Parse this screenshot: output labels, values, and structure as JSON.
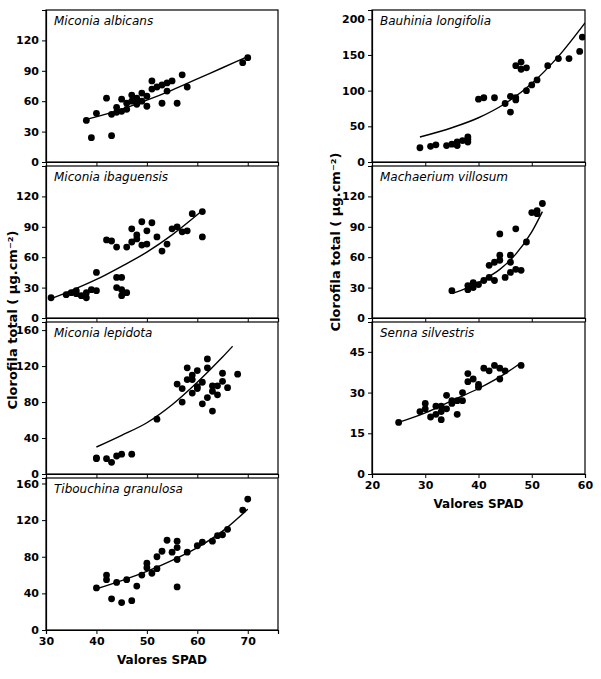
{
  "chart_data": [
    {
      "type": "scatter",
      "title": "Miconia albicans",
      "xlim": [
        30,
        76
      ],
      "ylim": [
        0,
        150
      ],
      "xticks": [
        30,
        40,
        50,
        60,
        70
      ],
      "yticks": [
        0,
        30,
        60,
        90,
        120
      ],
      "tick_labels": "y",
      "series": [
        {
          "type": "scatter",
          "marker": "circle",
          "color": "#000000",
          "x": [
            38,
            39,
            40,
            42,
            43,
            43,
            44,
            44,
            45,
            45,
            46,
            46,
            47,
            47,
            48,
            48,
            49,
            49,
            50,
            50,
            51,
            51,
            52,
            53,
            53,
            54,
            54,
            55,
            56,
            57,
            58,
            69,
            70
          ],
          "values": [
            41,
            24,
            48,
            63,
            26,
            47,
            49,
            54,
            50,
            62,
            58,
            52,
            60,
            66,
            57,
            63,
            68,
            60,
            55,
            65,
            80,
            72,
            74,
            58,
            76,
            70,
            78,
            80,
            58,
            86,
            74,
            98,
            103
          ]
        },
        {
          "type": "line",
          "line_style": "solid",
          "color": "#000000",
          "x": [
            38,
            45,
            50,
            55,
            60,
            65,
            70
          ],
          "values": [
            42,
            52,
            61,
            71,
            82,
            93,
            104
          ]
        }
      ]
    },
    {
      "type": "scatter",
      "title": "Miconia ibaguensis",
      "xlim": [
        30,
        76
      ],
      "ylim": [
        0,
        150
      ],
      "xticks": [
        30,
        40,
        50,
        60,
        70
      ],
      "yticks": [
        0,
        30,
        60,
        90,
        120
      ],
      "tick_labels": "y",
      "series": [
        {
          "type": "scatter",
          "marker": "circle",
          "color": "#000000",
          "x": [
            31,
            34,
            35,
            36,
            36,
            37,
            38,
            38,
            39,
            40,
            40,
            42,
            43,
            44,
            44,
            44,
            45,
            45,
            45,
            46,
            46,
            47,
            47,
            48,
            48,
            49,
            49,
            50,
            50,
            51,
            52,
            53,
            54,
            55,
            56,
            57,
            58,
            59,
            61,
            61
          ],
          "values": [
            20,
            23,
            25,
            24,
            27,
            22,
            20,
            25,
            28,
            45,
            27,
            77,
            76,
            70,
            40,
            30,
            28,
            22,
            40,
            25,
            70,
            75,
            88,
            82,
            78,
            72,
            95,
            73,
            86,
            94,
            80,
            66,
            73,
            88,
            90,
            85,
            86,
            103,
            80,
            105
          ]
        },
        {
          "type": "line",
          "line_style": "solid",
          "color": "#000000",
          "x": [
            31,
            35,
            40,
            45,
            50,
            55,
            61
          ],
          "values": [
            19,
            27,
            38,
            51,
            65,
            82,
            106
          ]
        }
      ]
    },
    {
      "type": "scatter",
      "title": "Miconia lepidota",
      "xlim": [
        30,
        76
      ],
      "ylim": [
        0,
        169
      ],
      "xticks": [
        30,
        40,
        50,
        60,
        70
      ],
      "yticks": [
        0,
        40,
        80,
        120,
        160
      ],
      "tick_labels": "y",
      "y_label": "Clorofila total ( µg.cm⁻²)",
      "series": [
        {
          "type": "scatter",
          "marker": "circle",
          "color": "#000000",
          "x": [
            40,
            40,
            42,
            43,
            44,
            45,
            47,
            52,
            56,
            57,
            57,
            58,
            58,
            59,
            59,
            59,
            60,
            60,
            60,
            61,
            61,
            62,
            62,
            62,
            63,
            63,
            63,
            64,
            64,
            65,
            65,
            66,
            68
          ],
          "values": [
            18,
            17,
            17,
            13,
            20,
            22,
            22,
            61,
            100,
            95,
            80,
            105,
            118,
            110,
            105,
            90,
            115,
            97,
            95,
            78,
            102,
            85,
            128,
            118,
            98,
            70,
            92,
            98,
            88,
            103,
            112,
            96,
            111
          ]
        },
        {
          "type": "line",
          "line_style": "solid",
          "color": "#000000",
          "x": [
            40,
            45,
            50,
            55,
            60,
            65,
            67
          ],
          "values": [
            30,
            43,
            57,
            77,
            102,
            130,
            142
          ]
        }
      ]
    },
    {
      "type": "scatter",
      "title": "Tibouchina granulosa",
      "xlim": [
        30,
        76
      ],
      "ylim": [
        0,
        166
      ],
      "xticks": [
        30,
        40,
        50,
        60,
        70
      ],
      "yticks": [
        0,
        40,
        80,
        120,
        160
      ],
      "x_label": "Valores SPAD",
      "series": [
        {
          "type": "scatter",
          "marker": "circle",
          "color": "#000000",
          "x": [
            40,
            42,
            42,
            43,
            44,
            45,
            46,
            47,
            48,
            49,
            50,
            50,
            51,
            52,
            52,
            53,
            54,
            55,
            56,
            56,
            56,
            56,
            58,
            60,
            61,
            63,
            64,
            65,
            66,
            69,
            70
          ],
          "values": [
            46,
            55,
            60,
            34,
            52,
            30,
            55,
            32,
            48,
            60,
            73,
            68,
            62,
            67,
            80,
            86,
            98,
            85,
            90,
            77,
            97,
            47,
            85,
            92,
            96,
            97,
            103,
            104,
            110,
            131,
            143
          ]
        },
        {
          "type": "line",
          "line_style": "solid",
          "color": "#000000",
          "x": [
            40,
            45,
            50,
            55,
            60,
            65,
            70
          ],
          "values": [
            45,
            54,
            64,
            76,
            90,
            108,
            132
          ]
        }
      ]
    },
    {
      "type": "scatter",
      "title": "Bauhinia longifolia",
      "xlim": [
        20,
        60
      ],
      "ylim": [
        0,
        213
      ],
      "xticks": [
        20,
        30,
        40,
        50,
        60
      ],
      "yticks": [
        0,
        50,
        100,
        150,
        200
      ],
      "tick_labels": "y",
      "series": [
        {
          "type": "scatter",
          "marker": "circle",
          "color": "#000000",
          "x": [
            29,
            31,
            32,
            34,
            35,
            36,
            36,
            37,
            38,
            38,
            38,
            40,
            41,
            43,
            45,
            46,
            46,
            47,
            47,
            47,
            48,
            48,
            49,
            49,
            50,
            51,
            53,
            55,
            57,
            59,
            59.5
          ],
          "values": [
            20,
            22,
            24,
            23,
            25,
            28,
            23,
            30,
            35,
            28,
            32,
            88,
            90,
            90,
            82,
            70,
            92,
            90,
            87,
            135,
            130,
            140,
            132,
            100,
            108,
            115,
            135,
            145,
            145,
            155,
            175
          ]
        },
        {
          "type": "line",
          "line_style": "solid",
          "color": "#000000",
          "x": [
            29,
            35,
            40,
            45,
            50,
            55,
            60
          ],
          "values": [
            35,
            48,
            62,
            82,
            110,
            148,
            195
          ]
        }
      ]
    },
    {
      "type": "scatter",
      "title": "Machaerium villosum",
      "xlim": [
        20,
        60
      ],
      "ylim": [
        0,
        150
      ],
      "xticks": [
        20,
        30,
        40,
        50,
        60
      ],
      "yticks": [
        0,
        30,
        60,
        90,
        120
      ],
      "tick_labels": "y",
      "y_label": "Clorofila total ( µg.cm⁻²)",
      "series": [
        {
          "type": "scatter",
          "marker": "circle",
          "color": "#000000",
          "x": [
            35,
            38,
            38,
            39,
            39,
            40,
            41,
            42,
            42,
            43,
            43,
            44,
            44,
            44,
            45,
            46,
            46,
            46,
            47,
            47,
            48,
            49,
            50,
            51,
            51,
            52
          ],
          "values": [
            27,
            32,
            28,
            30,
            35,
            33,
            37,
            52,
            40,
            37,
            55,
            62,
            57,
            83,
            40,
            45,
            55,
            62,
            48,
            88,
            47,
            75,
            104,
            106,
            103,
            113
          ]
        },
        {
          "type": "line",
          "line_style": "solid",
          "color": "#000000",
          "x": [
            35,
            38,
            41,
            44,
            47,
            50,
            52
          ],
          "values": [
            24,
            30,
            38,
            48,
            63,
            85,
            105
          ]
        }
      ]
    },
    {
      "type": "scatter",
      "title": "Senna silvestris",
      "xlim": [
        20,
        60
      ],
      "ylim": [
        0,
        56
      ],
      "xticks": [
        20,
        30,
        40,
        50,
        60
      ],
      "yticks": [
        0,
        15,
        30,
        45
      ],
      "x_label": "Valores SPAD",
      "series": [
        {
          "type": "scatter",
          "marker": "circle",
          "color": "#000000",
          "x": [
            25,
            29,
            30,
            30,
            31,
            32,
            32,
            33,
            33,
            33,
            34,
            34,
            35,
            35,
            36,
            36,
            37,
            37,
            38,
            38,
            39,
            40,
            40,
            41,
            42,
            43,
            44,
            44,
            45,
            48
          ],
          "values": [
            19,
            23,
            26,
            24,
            21,
            25,
            22,
            25,
            20,
            23,
            24,
            29,
            27,
            26,
            27,
            22,
            30,
            27,
            34,
            37,
            35,
            32,
            33,
            39,
            38,
            40,
            35,
            39,
            38,
            40
          ]
        },
        {
          "type": "line",
          "line_style": "solid",
          "color": "#000000",
          "x": [
            25,
            30,
            35,
            40,
            45,
            48
          ],
          "values": [
            19,
            22.5,
            27,
            31.5,
            37,
            41
          ]
        }
      ]
    }
  ]
}
